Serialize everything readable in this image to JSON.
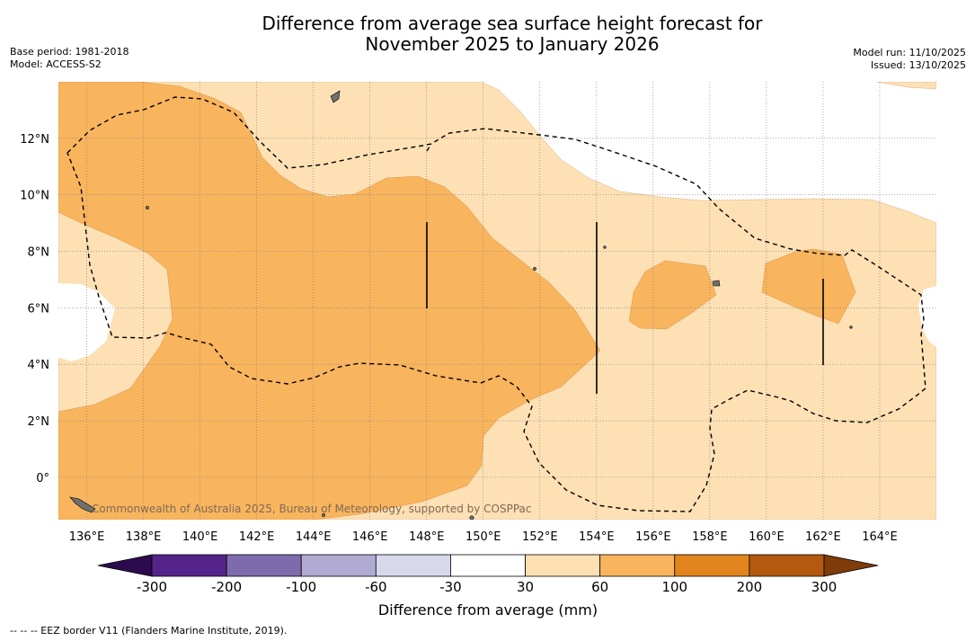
{
  "title": {
    "line1": "Difference from average sea surface height forecast for",
    "line2": "November 2025 to January 2026"
  },
  "meta_left": {
    "base_period": "Base period: 1981-2018",
    "model": "Model: ACCESS-S2"
  },
  "meta_right": {
    "model_run": "Model run: 11/10/2025",
    "issued": "Issued: 13/10/2025"
  },
  "map": {
    "lon_ticks": [
      "136°E",
      "138°E",
      "140°E",
      "142°E",
      "144°E",
      "146°E",
      "148°E",
      "150°E",
      "152°E",
      "154°E",
      "156°E",
      "158°E",
      "160°E",
      "162°E",
      "164°E"
    ],
    "lat_ticks": [
      "12°N",
      "10°N",
      "8°N",
      "6°N",
      "4°N",
      "2°N",
      "0°"
    ],
    "lon_values": [
      136,
      138,
      140,
      142,
      144,
      146,
      148,
      150,
      152,
      154,
      156,
      158,
      160,
      162,
      164
    ],
    "lat_values": [
      12,
      10,
      8,
      6,
      4,
      2,
      0
    ],
    "extent": {
      "lon_min": 135,
      "lon_max": 166,
      "lat_min": -1.5,
      "lat_max": 14
    },
    "copyright": "Commonwealth of Australia 2025, Bureau of Meteorology, supported by COSPPac"
  },
  "colorbar": {
    "label": "Difference from average (mm)",
    "ticks": [
      "-300",
      "-200",
      "-100",
      "-60",
      "-30",
      "30",
      "60",
      "100",
      "200",
      "300"
    ],
    "colors": [
      "#55248a",
      "#7d6bab",
      "#b1abd4",
      "#d8d8ec",
      "#ffffff",
      "#fde0b4",
      "#f9b45e",
      "#e1851c",
      "#b35a0e"
    ],
    "under_color": "#2d0a4e",
    "over_color": "#7f3b08"
  },
  "legend_footnote": "--  --  -- EEZ border V11 (Flanders Marine Institute, 2019)."
}
